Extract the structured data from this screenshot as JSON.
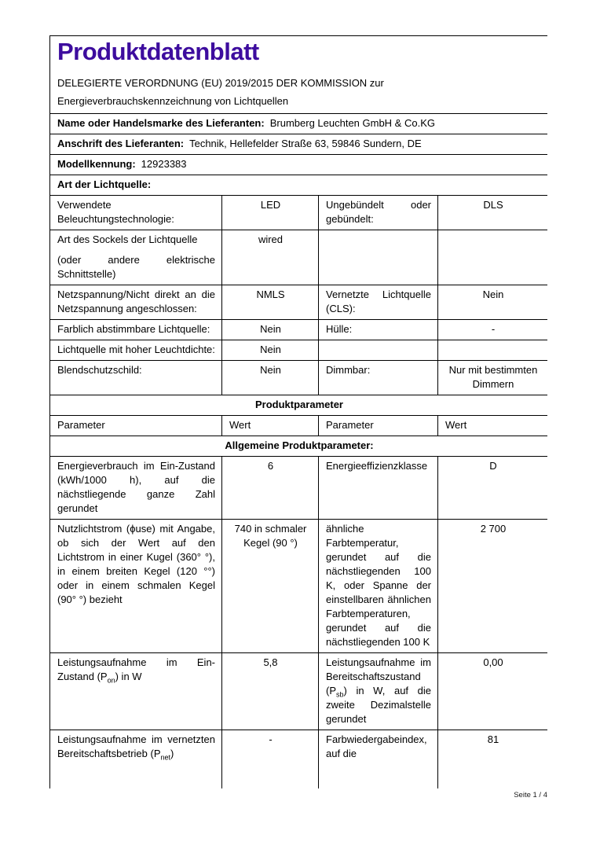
{
  "document": {
    "title": "Produktdatenblatt",
    "title_color": "#3d0c9e",
    "regulation_line1": "DELEGIERTE VERORDNUNG (EU) 2019/2015 DER KOMMISSION zur",
    "regulation_line2": "Energieverbrauchskennzeichnung von Lichtquellen",
    "footer_page": "Seite 1 / 4"
  },
  "supplier_rows": [
    {
      "label": "Name oder Handelsmarke des Lieferanten:",
      "value": "Brumberg Leuchten GmbH & Co.KG"
    },
    {
      "label": "Anschrift des Lieferanten:",
      "value": "Technik, Hellefelder Straße 63, 59846 Sundern, DE"
    },
    {
      "label": "Modellkennung:",
      "value": "12923383"
    },
    {
      "label": "Art der Lichtquelle:",
      "value": ""
    }
  ],
  "light_source_rows": [
    {
      "param1": "Verwendete Beleuchtungstechnologie:",
      "value1": "LED",
      "param2": "Ungebündelt oder gebündelt:",
      "value2": "DLS"
    },
    {
      "param1": "Art des Sockels der Lichtquelle",
      "param1b": "(oder andere elektrische Schnittstelle)",
      "value1": "wired",
      "param2": "",
      "value2": ""
    },
    {
      "param1": "Netzspannung/Nicht direkt an die Netzspannung angeschlossen:",
      "value1": "NMLS",
      "param2": "Vernetzte Lichtquelle (CLS):",
      "value2": "Nein"
    },
    {
      "param1": "Farblich abstimmbare Lichtquelle:",
      "value1": "Nein",
      "param2": "Hülle:",
      "value2": "-"
    },
    {
      "param1": "Lichtquelle mit hoher Leuchtdichte:",
      "value1": "Nein",
      "param2": "",
      "value2": ""
    },
    {
      "param1": "Blendschutzschild:",
      "value1": "Nein",
      "param2": "Dimmbar:",
      "value2": "Nur mit bestimmten Dimmern"
    }
  ],
  "product_parameters": {
    "section_title": "Produktparameter",
    "column_headers": [
      "Parameter",
      "Wert",
      "Parameter",
      "Wert"
    ],
    "subsection_title": "Allgemeine Produktparameter:",
    "rows": [
      {
        "param1": "Energieverbrauch im Ein-Zustand (kWh/1000 h), auf die nächstliegende ganze Zahl gerundet",
        "value1": "6",
        "param2": "Energieeffizienzklasse",
        "value2": "D"
      },
      {
        "param1": "Nutzlichtstrom (ϕuse) mit Angabe, ob sich der Wert auf den Lichtstrom in einer Kugel (360° °), in einem breiten Kegel (120 °°) oder in einem schmalen Kegel (90° °) bezieht",
        "value1": "740 in schmaler Kegel (90 °)",
        "param2": "ähnliche Farbtemperatur, gerundet auf die nächstliegenden 100 K, oder Spanne der einstellbaren ähnlichen Farbtemperaturen, gerundet auf die nächstliegenden 100 K",
        "value2": "2 700"
      },
      {
        "param1": "Leistungsaufnahme im Ein-Zustand (P_{on}) in W",
        "value1": "5,8",
        "param2": "Leistungsaufnahme im Bereitschaftszustand (P_{sb}) in W, auf die zweite Dezimalstelle gerundet",
        "value2": "0,00"
      },
      {
        "param1": "Leistungsaufnahme im vernetzten Bereitschaftsbetrieb (P_{net})",
        "value1": "-",
        "param2": "Farbwiedergabeindex, auf die",
        "value2": "81"
      }
    ]
  }
}
